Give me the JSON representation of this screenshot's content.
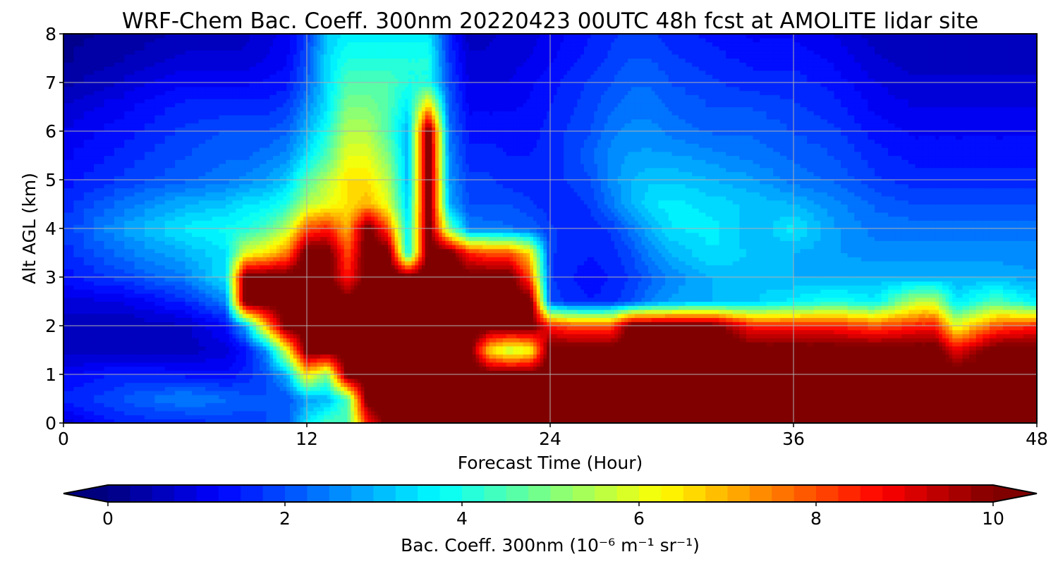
{
  "chart_data": {
    "type": "heatmap",
    "title": "WRF-Chem Bac. Coeff. 300nm  20220423 00UTC 48h fcst at AMOLITE lidar site",
    "xlabel": "Forecast Time (Hour)",
    "ylabel": "Alt AGL (km)",
    "xlim": [
      0,
      48
    ],
    "ylim": [
      0,
      8
    ],
    "xticks": [
      0,
      12,
      24,
      36,
      48
    ],
    "yticks": [
      0,
      1,
      2,
      3,
      4,
      5,
      6,
      7,
      8
    ],
    "grid": true,
    "colormap": "jet",
    "colorbar": {
      "orientation": "horizontal",
      "placement": "bottom",
      "range": [
        0,
        10
      ],
      "ticks": [
        0,
        2,
        4,
        6,
        8,
        10
      ],
      "label": "Bac. Coeff. 300nm  (10⁻⁶ m⁻¹ sr⁻¹)",
      "extend": "both"
    },
    "x": [
      0,
      3,
      6,
      8,
      9,
      10,
      11,
      12,
      13,
      14,
      15,
      16,
      17,
      18,
      19,
      20,
      21,
      22,
      23,
      24,
      25,
      26,
      27,
      28,
      29,
      30,
      32,
      34,
      36,
      38,
      40,
      42,
      43,
      44,
      46,
      48
    ],
    "y": [
      0,
      0.5,
      1,
      1.5,
      2,
      2.5,
      3,
      3.5,
      4,
      4.5,
      5,
      5.5,
      6,
      6.5,
      7,
      7.5,
      8
    ],
    "values": [
      [
        0.8,
        1.6,
        1.6,
        1.8,
        1.9,
        2.0,
        2.1,
        3.5,
        4.5,
        4.5,
        8.5,
        10.5,
        10.5,
        10.5,
        10.5,
        10.5,
        10.5,
        10.5,
        10.5,
        10.5,
        10.5,
        10.5,
        10.5,
        10.5,
        10.5,
        10.5,
        10.5,
        10.5,
        10.5,
        10.5,
        10.5,
        10.5,
        10.5,
        10.5,
        10.5,
        10.5
      ],
      [
        1.6,
        2.0,
        2.6,
        2.3,
        2.1,
        2.0,
        2.0,
        2.8,
        3.0,
        4.5,
        10.5,
        10.5,
        10.5,
        10.5,
        10.5,
        10.5,
        10.5,
        10.5,
        10.5,
        10.5,
        10.5,
        10.5,
        10.5,
        10.5,
        10.5,
        10.5,
        10.5,
        10.5,
        10.5,
        10.5,
        10.5,
        10.5,
        10.5,
        10.5,
        10.5,
        10.5
      ],
      [
        1.2,
        1.6,
        1.4,
        1.3,
        1.6,
        2.0,
        3.0,
        6.5,
        5.0,
        10.5,
        10.5,
        10.5,
        10.5,
        10.5,
        10.5,
        10.5,
        10.5,
        10.5,
        10.5,
        10.5,
        10.5,
        10.5,
        10.5,
        10.5,
        10.5,
        10.5,
        10.5,
        10.5,
        10.5,
        10.5,
        10.5,
        10.5,
        10.5,
        10.5,
        10.5,
        10.5
      ],
      [
        0.6,
        0.5,
        0.6,
        0.9,
        1.4,
        2.6,
        6.0,
        10.5,
        10.5,
        10.5,
        10.5,
        10.5,
        10.5,
        10.5,
        10.5,
        10.5,
        6.5,
        5.5,
        6.0,
        10.5,
        10.5,
        10.5,
        10.5,
        10.5,
        10.5,
        10.5,
        10.5,
        10.5,
        10.5,
        10.5,
        10.5,
        10.5,
        10.5,
        9.0,
        10.5,
        10.5
      ],
      [
        0.6,
        0.5,
        0.7,
        1.3,
        3.0,
        7.0,
        10.5,
        10.5,
        10.5,
        10.5,
        10.5,
        10.5,
        10.5,
        10.5,
        10.5,
        10.5,
        10.5,
        10.5,
        10.5,
        8.5,
        8.0,
        8.0,
        8.0,
        10.5,
        10.5,
        10.5,
        10.5,
        8.5,
        8.5,
        8.5,
        8.0,
        8.5,
        8.5,
        6.0,
        8.0,
        8.5
      ],
      [
        0.9,
        1.0,
        1.6,
        2.5,
        10.5,
        10.5,
        10.5,
        10.5,
        10.5,
        10.5,
        10.5,
        10.5,
        10.5,
        10.5,
        10.5,
        10.5,
        10.5,
        10.5,
        10.5,
        2.0,
        1.6,
        1.5,
        1.6,
        2.0,
        2.5,
        2.8,
        3.0,
        3.2,
        3.6,
        4.0,
        3.6,
        5.5,
        5.5,
        3.5,
        4.5,
        3.5
      ],
      [
        1.4,
        1.9,
        2.5,
        3.5,
        10.5,
        10.5,
        10.5,
        10.5,
        10.5,
        8.5,
        10.5,
        10.5,
        10.5,
        10.5,
        10.5,
        10.5,
        10.5,
        10.5,
        8.0,
        1.8,
        1.5,
        1.4,
        1.5,
        1.8,
        2.2,
        2.6,
        3.0,
        3.2,
        3.0,
        3.0,
        3.0,
        3.0,
        3.0,
        3.0,
        3.0,
        2.8
      ],
      [
        1.6,
        2.4,
        3.0,
        3.5,
        6.0,
        6.5,
        7.5,
        10.5,
        10.5,
        8.0,
        10.5,
        10.5,
        3.5,
        10.5,
        10.5,
        8.5,
        8.0,
        8.0,
        6.5,
        1.8,
        1.6,
        1.5,
        1.6,
        2.0,
        2.6,
        3.0,
        3.5,
        3.2,
        3.0,
        2.8,
        2.6,
        2.6,
        2.6,
        2.6,
        2.6,
        2.6
      ],
      [
        1.8,
        2.8,
        3.6,
        3.8,
        4.0,
        4.5,
        5.5,
        8.0,
        8.5,
        7.0,
        10.5,
        8.0,
        3.5,
        10.5,
        5.0,
        2.5,
        2.4,
        2.3,
        2.2,
        1.8,
        1.6,
        1.6,
        1.8,
        2.4,
        3.0,
        3.5,
        3.6,
        3.0,
        3.6,
        2.8,
        2.4,
        2.4,
        2.4,
        2.4,
        2.4,
        2.4
      ],
      [
        1.6,
        2.4,
        3.0,
        3.2,
        3.5,
        3.6,
        4.0,
        5.5,
        6.0,
        6.5,
        7.0,
        6.0,
        3.2,
        10.5,
        3.0,
        2.0,
        2.0,
        2.0,
        1.8,
        1.6,
        1.6,
        1.8,
        2.4,
        3.0,
        3.5,
        3.6,
        3.4,
        3.2,
        3.0,
        2.6,
        2.2,
        2.0,
        2.0,
        2.0,
        2.0,
        2.0
      ],
      [
        1.4,
        1.8,
        2.2,
        2.4,
        2.6,
        2.8,
        3.2,
        4.5,
        5.5,
        6.5,
        6.5,
        5.5,
        3.0,
        10.5,
        2.8,
        1.8,
        1.8,
        1.6,
        1.6,
        1.6,
        1.8,
        2.0,
        2.6,
        3.0,
        3.2,
        3.2,
        3.0,
        2.8,
        2.4,
        2.2,
        1.8,
        1.6,
        1.6,
        1.6,
        1.6,
        1.6
      ],
      [
        1.2,
        1.6,
        2.0,
        2.2,
        2.2,
        2.4,
        2.6,
        3.5,
        4.5,
        6.0,
        6.0,
        5.0,
        3.0,
        10.5,
        2.6,
        1.6,
        1.6,
        1.5,
        1.5,
        1.6,
        1.8,
        2.2,
        2.6,
        2.8,
        2.8,
        2.8,
        2.6,
        2.4,
        2.2,
        2.0,
        1.6,
        1.4,
        1.4,
        1.4,
        1.4,
        1.4
      ],
      [
        1.0,
        1.4,
        1.8,
        2.0,
        2.0,
        2.0,
        2.2,
        3.0,
        4.0,
        5.5,
        5.5,
        4.5,
        3.0,
        10.5,
        2.4,
        1.4,
        1.4,
        1.4,
        1.4,
        1.6,
        1.8,
        2.0,
        2.4,
        2.6,
        2.6,
        2.4,
        2.2,
        2.2,
        2.0,
        1.8,
        1.4,
        1.2,
        1.2,
        1.2,
        1.2,
        1.2
      ],
      [
        0.8,
        1.2,
        1.6,
        1.6,
        1.6,
        1.6,
        1.8,
        2.6,
        3.5,
        5.0,
        5.0,
        4.5,
        3.5,
        7.0,
        2.2,
        1.2,
        1.2,
        1.2,
        1.3,
        1.5,
        1.7,
        1.9,
        2.2,
        2.4,
        2.4,
        2.2,
        2.0,
        2.0,
        1.8,
        1.6,
        1.2,
        1.0,
        1.0,
        1.0,
        1.0,
        1.0
      ],
      [
        0.4,
        0.8,
        1.2,
        1.2,
        1.2,
        1.3,
        1.4,
        2.2,
        3.4,
        4.5,
        4.5,
        4.5,
        4.0,
        4.0,
        2.0,
        1.0,
        1.0,
        1.0,
        1.2,
        1.4,
        1.6,
        1.8,
        2.0,
        2.2,
        2.2,
        2.0,
        1.8,
        1.6,
        1.6,
        1.4,
        1.0,
        0.8,
        0.8,
        0.8,
        0.8,
        0.8
      ],
      [
        0.2,
        0.5,
        0.8,
        0.8,
        0.8,
        1.0,
        1.2,
        2.0,
        3.4,
        4.0,
        4.0,
        4.0,
        4.0,
        4.0,
        1.8,
        0.8,
        0.8,
        0.9,
        1.0,
        1.2,
        1.4,
        1.6,
        1.8,
        2.0,
        2.0,
        1.8,
        1.6,
        1.4,
        1.4,
        1.2,
        0.8,
        0.6,
        0.6,
        0.6,
        0.6,
        0.6
      ],
      [
        0.2,
        0.3,
        0.6,
        0.6,
        0.7,
        0.9,
        1.1,
        1.8,
        3.2,
        3.6,
        3.6,
        3.6,
        3.6,
        3.6,
        1.6,
        0.6,
        0.7,
        0.8,
        0.9,
        1.1,
        1.3,
        1.5,
        1.7,
        1.8,
        1.8,
        1.6,
        1.4,
        1.2,
        1.2,
        1.0,
        0.6,
        0.5,
        0.5,
        0.5,
        0.5,
        0.5
      ]
    ]
  }
}
